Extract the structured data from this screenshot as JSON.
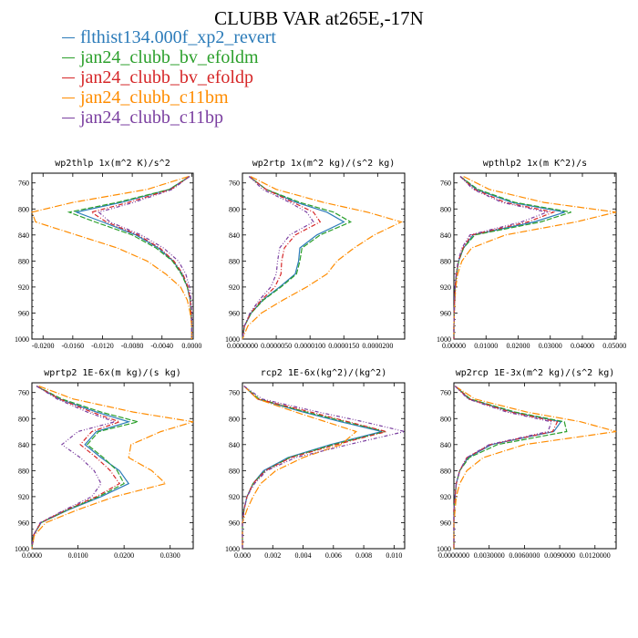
{
  "title": "CLUBB VAR at265E,-17N",
  "legend": [
    {
      "label": "flthist134.000f_xp2_revert",
      "color": "#2b7bb9"
    },
    {
      "label": "jan24_clubb_bv_efoldm",
      "color": "#2ca02c"
    },
    {
      "label": "jan24_clubb_bv_efoldp",
      "color": "#d62728"
    },
    {
      "label": "jan24_clubb_c11bm",
      "color": "#ff8c00"
    },
    {
      "label": "jan24_clubb_c11bp",
      "color": "#7b3fa0"
    }
  ],
  "chart_data": [
    {
      "type": "line",
      "title": "wp2thlp   1x(m^2 K)/s^2",
      "xlim": [
        -0.0215,
        0.0002
      ],
      "ylim": [
        1000,
        745
      ],
      "yticks": [
        760,
        800,
        840,
        880,
        920,
        960,
        1000
      ],
      "xticks": [
        -0.02,
        -0.016,
        -0.012,
        -0.008,
        -0.004,
        0.0
      ],
      "xtick_labels": [
        "-0.0200",
        "-0.0160",
        "-0.0120",
        "-0.0080",
        "-0.0040",
        "0.0000"
      ],
      "y": [
        750,
        770,
        790,
        805,
        820,
        840,
        860,
        880,
        900,
        920,
        940,
        960,
        980,
        1000
      ],
      "series": [
        {
          "name": "flthist134.000f_xp2_revert",
          "values": [
            -0.0003,
            -0.003,
            -0.0095,
            -0.0155,
            -0.012,
            -0.0075,
            -0.0045,
            -0.0025,
            -0.0013,
            -0.0006,
            -0.0002,
            -0.0001,
            0.0,
            0.0
          ]
        },
        {
          "name": "jan24_clubb_bv_efoldm",
          "values": [
            -0.0003,
            -0.003,
            -0.01,
            -0.0165,
            -0.013,
            -0.008,
            -0.0048,
            -0.0026,
            -0.0014,
            -0.0006,
            -0.0002,
            -0.0001,
            0.0,
            0.0
          ]
        },
        {
          "name": "jan24_clubb_bv_efoldp",
          "values": [
            -0.0003,
            -0.0028,
            -0.0085,
            -0.0135,
            -0.0115,
            -0.0072,
            -0.0043,
            -0.0024,
            -0.0012,
            -0.0005,
            -0.0002,
            -0.0001,
            0.0,
            0.0
          ]
        },
        {
          "name": "jan24_clubb_c11bm",
          "values": [
            -0.0004,
            -0.006,
            -0.016,
            -0.0215,
            -0.021,
            -0.0155,
            -0.01,
            -0.006,
            -0.0035,
            -0.0015,
            -0.0006,
            -0.0002,
            0.0,
            0.0
          ]
        },
        {
          "name": "jan24_clubb_c11bp",
          "values": [
            -0.0003,
            -0.0026,
            -0.0078,
            -0.0125,
            -0.011,
            -0.0068,
            -0.0038,
            -0.0018,
            -0.0008,
            -0.0003,
            -0.0001,
            0.0,
            0.0,
            0.0
          ]
        }
      ]
    },
    {
      "type": "line",
      "title": "wp2rtp   1x(m^2 kg)/(s^2 kg)",
      "xlim": [
        0.0,
        2.4e-05
      ],
      "ylim": [
        1000,
        745
      ],
      "yticks": [
        760,
        800,
        840,
        880,
        920,
        960,
        1000
      ],
      "xticks": [
        0.0,
        5e-06,
        1e-05,
        1.5e-05,
        2e-05
      ],
      "xtick_labels": [
        "0.0000000",
        "0.0000050",
        "0.0000100",
        "0.0000150",
        "0.0000200"
      ],
      "y": [
        750,
        770,
        790,
        805,
        820,
        840,
        860,
        880,
        900,
        920,
        940,
        960,
        980,
        1000
      ],
      "series": [
        {
          "name": "flthist134.000f_xp2_revert",
          "values": [
            1e-06,
            3.5e-06,
            8e-06,
            1.25e-05,
            1.5e-05,
            1.1e-05,
            8.5e-06,
            8.3e-06,
            7.8e-06,
            5.5e-06,
            3e-06,
            1.3e-06,
            3e-07,
            0.0
          ]
        },
        {
          "name": "jan24_clubb_bv_efoldm",
          "values": [
            1e-06,
            3.5e-06,
            8.5e-06,
            1.35e-05,
            1.6e-05,
            1.15e-05,
            8.8e-06,
            8.5e-06,
            8e-06,
            5.7e-06,
            3.1e-06,
            1.3e-06,
            3e-07,
            0.0
          ]
        },
        {
          "name": "jan24_clubb_bv_efoldp",
          "values": [
            1e-06,
            3.5e-06,
            7.5e-06,
            1.05e-05,
            1.15e-05,
            7.8e-06,
            6.2e-06,
            5.8e-06,
            5.7e-06,
            4.8e-06,
            2.8e-06,
            1.2e-06,
            3e-07,
            0.0
          ]
        },
        {
          "name": "jan24_clubb_c11bm",
          "values": [
            1.2e-06,
            5e-06,
            1.2e-05,
            1.85e-05,
            2.35e-05,
            1.95e-05,
            1.65e-05,
            1.4e-05,
            1.25e-05,
            9.5e-06,
            6e-06,
            2.8e-06,
            8e-07,
            0.0
          ]
        },
        {
          "name": "jan24_clubb_c11bp",
          "values": [
            1e-06,
            3e-06,
            7e-06,
            9.5e-06,
            1.05e-05,
            7e-06,
            5.5e-06,
            5.2e-06,
            5e-06,
            4.2e-06,
            2.5e-06,
            1.1e-06,
            3e-07,
            0.0
          ]
        }
      ]
    },
    {
      "type": "line",
      "title": "wpthlp2   1x(m K^2)/s",
      "xlim": [
        0.0,
        0.0505
      ],
      "ylim": [
        1000,
        745
      ],
      "yticks": [
        760,
        800,
        840,
        880,
        920,
        960,
        1000
      ],
      "xticks": [
        0.0,
        0.01,
        0.02,
        0.03,
        0.04,
        0.05
      ],
      "xtick_labels": [
        "0.00000",
        "0.01000",
        "0.02000",
        "0.03000",
        "0.04000",
        "0.05000"
      ],
      "y": [
        750,
        770,
        790,
        805,
        820,
        840,
        860,
        880,
        900,
        920,
        940,
        960,
        980,
        1000
      ],
      "series": [
        {
          "name": "flthist134.000f_xp2_revert",
          "values": [
            0.002,
            0.007,
            0.018,
            0.0345,
            0.025,
            0.006,
            0.003,
            0.0015,
            0.0008,
            0.0004,
            0.0002,
            0.0001,
            0.0,
            0.0
          ]
        },
        {
          "name": "jan24_clubb_bv_efoldm",
          "values": [
            0.002,
            0.0075,
            0.019,
            0.0365,
            0.027,
            0.0065,
            0.003,
            0.0015,
            0.0008,
            0.0004,
            0.0002,
            0.0001,
            0.0,
            0.0
          ]
        },
        {
          "name": "jan24_clubb_bv_efoldp",
          "values": [
            0.002,
            0.0065,
            0.016,
            0.031,
            0.023,
            0.0055,
            0.0028,
            0.0014,
            0.0008,
            0.0004,
            0.0002,
            0.0001,
            0.0,
            0.0
          ]
        },
        {
          "name": "jan24_clubb_c11bm",
          "values": [
            0.003,
            0.011,
            0.028,
            0.0505,
            0.038,
            0.016,
            0.0055,
            0.0025,
            0.0012,
            0.0006,
            0.0003,
            0.0001,
            0.0,
            0.0
          ]
        },
        {
          "name": "jan24_clubb_c11bp",
          "values": [
            0.002,
            0.006,
            0.015,
            0.029,
            0.021,
            0.005,
            0.0025,
            0.0013,
            0.0007,
            0.0004,
            0.0002,
            0.0001,
            0.0,
            0.0
          ]
        }
      ]
    },
    {
      "type": "line",
      "title": "wprtp2   1E-6x(m kg)/(s kg)",
      "xlim": [
        0.0,
        0.035
      ],
      "ylim": [
        1000,
        745
      ],
      "yticks": [
        760,
        800,
        840,
        880,
        920,
        960,
        1000
      ],
      "xticks": [
        0.0,
        0.01,
        0.02,
        0.03
      ],
      "xtick_labels": [
        "0.0000",
        "0.0100",
        "0.0200",
        "0.0300"
      ],
      "y": [
        750,
        770,
        790,
        805,
        820,
        840,
        860,
        880,
        900,
        920,
        940,
        960,
        980,
        1000
      ],
      "series": [
        {
          "name": "flthist134.000f_xp2_revert",
          "values": [
            0.001,
            0.006,
            0.014,
            0.021,
            0.014,
            0.0115,
            0.015,
            0.019,
            0.021,
            0.015,
            0.008,
            0.002,
            0.0003,
            0.0
          ]
        },
        {
          "name": "jan24_clubb_bv_efoldm",
          "values": [
            0.001,
            0.0065,
            0.015,
            0.023,
            0.0145,
            0.012,
            0.0155,
            0.0185,
            0.02,
            0.0145,
            0.0078,
            0.002,
            0.0003,
            0.0
          ]
        },
        {
          "name": "jan24_clubb_bv_efoldp",
          "values": [
            0.001,
            0.006,
            0.013,
            0.019,
            0.013,
            0.0105,
            0.014,
            0.017,
            0.019,
            0.014,
            0.0075,
            0.0019,
            0.0003,
            0.0
          ]
        },
        {
          "name": "jan24_clubb_c11bm",
          "values": [
            0.0015,
            0.009,
            0.022,
            0.035,
            0.028,
            0.0215,
            0.021,
            0.026,
            0.029,
            0.018,
            0.01,
            0.003,
            0.0005,
            0.0
          ]
        },
        {
          "name": "jan24_clubb_c11bp",
          "values": [
            0.001,
            0.0055,
            0.012,
            0.018,
            0.01,
            0.0065,
            0.0105,
            0.0135,
            0.015,
            0.013,
            0.0072,
            0.0018,
            0.0003,
            0.0
          ]
        }
      ]
    },
    {
      "type": "line",
      "title": "rcp2   1E-6x(kg^2)/(kg^2)",
      "xlim": [
        0.0,
        0.0107
      ],
      "ylim": [
        1000,
        745
      ],
      "yticks": [
        760,
        800,
        840,
        880,
        920,
        960,
        1000
      ],
      "xticks": [
        0.0,
        0.002,
        0.004,
        0.006,
        0.008,
        0.01
      ],
      "xtick_labels": [
        "0.000",
        "0.002",
        "0.004",
        "0.006",
        "0.008",
        "0.010"
      ],
      "y": [
        750,
        770,
        790,
        805,
        820,
        840,
        860,
        880,
        900,
        920,
        940,
        960,
        980,
        1000
      ],
      "series": [
        {
          "name": "flthist134.000f_xp2_revert",
          "values": [
            0.0001,
            0.001,
            0.004,
            0.0065,
            0.0092,
            0.0058,
            0.003,
            0.0014,
            0.0007,
            0.0003,
            0.0001,
            0.0,
            0.0,
            0.0
          ]
        },
        {
          "name": "jan24_clubb_bv_efoldm",
          "values": [
            0.0001,
            0.0011,
            0.0042,
            0.0068,
            0.0094,
            0.006,
            0.0031,
            0.0015,
            0.0007,
            0.0003,
            0.0001,
            0.0,
            0.0,
            0.0
          ]
        },
        {
          "name": "jan24_clubb_bv_efoldp",
          "values": [
            0.0001,
            0.001,
            0.0045,
            0.007,
            0.0095,
            0.0062,
            0.0032,
            0.0015,
            0.0007,
            0.0003,
            0.0001,
            0.0,
            0.0,
            0.0
          ]
        },
        {
          "name": "jan24_clubb_c11bm",
          "values": [
            0.0001,
            0.001,
            0.0035,
            0.0055,
            0.0075,
            0.0065,
            0.004,
            0.0022,
            0.0012,
            0.0007,
            0.0003,
            0.0,
            0.0,
            0.0
          ]
        },
        {
          "name": "jan24_clubb_c11bp",
          "values": [
            0.0001,
            0.0013,
            0.005,
            0.008,
            0.0107,
            0.007,
            0.0035,
            0.0016,
            0.0008,
            0.0003,
            0.0001,
            0.0,
            0.0,
            0.0
          ]
        }
      ]
    },
    {
      "type": "line",
      "title": "wp2rcp   1E-3x(m^2 kg)/(s^2 kg)",
      "xlim": [
        0.0,
        0.0138
      ],
      "ylim": [
        1000,
        745
      ],
      "yticks": [
        760,
        800,
        840,
        880,
        920,
        960,
        1000
      ],
      "xticks": [
        0.0,
        0.003,
        0.006,
        0.009,
        0.012
      ],
      "xtick_labels": [
        "0.0000000",
        "0.0030000",
        "0.0060000",
        "0.0090000",
        "0.0120000"
      ],
      "y": [
        750,
        770,
        790,
        805,
        820,
        840,
        860,
        880,
        900,
        920,
        940,
        960,
        980,
        1000
      ],
      "series": [
        {
          "name": "flthist134.000f_xp2_revert",
          "values": [
            0.0001,
            0.0013,
            0.005,
            0.0091,
            0.0085,
            0.0032,
            0.0012,
            0.0005,
            0.0002,
            0.0001,
            0.0,
            0.0,
            0.0,
            0.0
          ]
        },
        {
          "name": "jan24_clubb_bv_efoldm",
          "values": [
            0.0001,
            0.0014,
            0.0052,
            0.0094,
            0.0096,
            0.0037,
            0.0013,
            0.0005,
            0.0002,
            0.0001,
            0.0,
            0.0,
            0.0,
            0.0
          ]
        },
        {
          "name": "jan24_clubb_bv_efoldp",
          "values": [
            0.0001,
            0.0013,
            0.0048,
            0.0088,
            0.0084,
            0.0031,
            0.0011,
            0.0005,
            0.0002,
            0.0001,
            0.0,
            0.0,
            0.0,
            0.0
          ]
        },
        {
          "name": "jan24_clubb_c11bm",
          "values": [
            0.0001,
            0.0018,
            0.0062,
            0.0108,
            0.0138,
            0.006,
            0.0025,
            0.0011,
            0.0005,
            0.0002,
            0.0001,
            0.0,
            0.0,
            0.0
          ]
        },
        {
          "name": "jan24_clubb_c11bp",
          "values": [
            0.0001,
            0.0012,
            0.0045,
            0.0083,
            0.008,
            0.003,
            0.0011,
            0.0005,
            0.0002,
            0.0001,
            0.0,
            0.0,
            0.0,
            0.0
          ]
        }
      ]
    }
  ]
}
